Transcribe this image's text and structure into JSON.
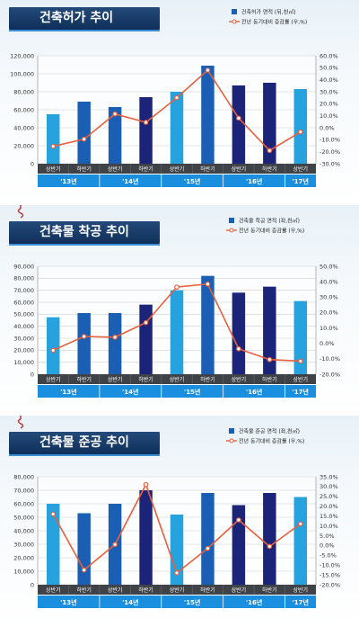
{
  "chart_data": [
    {
      "type": "bar",
      "title": "건축허가 추이",
      "categories": [
        "상반기",
        "하반기",
        "상반기",
        "하반기",
        "상반기",
        "하반기",
        "상반기",
        "하반기",
        "상반기"
      ],
      "year_groups": [
        {
          "label": "'13년",
          "span": [
            0,
            1
          ]
        },
        {
          "label": "'14년",
          "span": [
            2,
            3
          ]
        },
        {
          "label": "'15년",
          "span": [
            4,
            5
          ]
        },
        {
          "label": "'16년",
          "span": [
            6,
            7
          ]
        },
        {
          "label": "'17년",
          "span": [
            8,
            8
          ]
        }
      ],
      "series": [
        {
          "name": "건축허가 면적 (뒤,천㎡)",
          "type": "bar",
          "values": [
            55000,
            69000,
            63000,
            74000,
            80000,
            109000,
            87000,
            90000,
            83000
          ]
        },
        {
          "name": "전년 동기대비 증감률 (우,%)",
          "type": "line",
          "values": [
            -15.5,
            -9.5,
            11.5,
            4.5,
            25.0,
            48.0,
            8.0,
            -19.0,
            -3.5
          ]
        }
      ],
      "y_left": {
        "ticks": [
          "0",
          "20,000",
          "40,000",
          "60,000",
          "80,000",
          "100,000",
          "120,000"
        ],
        "min": 0,
        "max": 120000
      },
      "y_right": {
        "ticks": [
          "-30.0%",
          "-20.0%",
          "-10.0%",
          "0.0%",
          "10.0%",
          "20.0%",
          "30.0%",
          "40.0%",
          "50.0%",
          "60.0%"
        ],
        "min": -30,
        "max": 60
      }
    },
    {
      "type": "bar",
      "title": "건축물 착공 추이",
      "categories": [
        "상반기",
        "하반기",
        "상반기",
        "하반기",
        "상반기",
        "하반기",
        "상반기",
        "하반기",
        "상반기"
      ],
      "year_groups": [
        {
          "label": "'13년",
          "span": [
            0,
            1
          ]
        },
        {
          "label": "'14년",
          "span": [
            2,
            3
          ]
        },
        {
          "label": "'15년",
          "span": [
            4,
            5
          ]
        },
        {
          "label": "'16년",
          "span": [
            6,
            7
          ]
        },
        {
          "label": "'17년",
          "span": [
            8,
            8
          ]
        }
      ],
      "series": [
        {
          "name": "건축물 착공 면적 (좌,천㎡)",
          "type": "bar",
          "values": [
            47500,
            51000,
            51000,
            58000,
            70000,
            82000,
            68000,
            73000,
            61000
          ]
        },
        {
          "name": "전년 동기대비 증감률 (우,%)",
          "type": "line",
          "values": [
            -4.5,
            4.5,
            4.0,
            13.5,
            36.5,
            38.5,
            -3.5,
            -10.5,
            -11.5
          ]
        }
      ],
      "y_left": {
        "ticks": [
          "0",
          "10,000",
          "20,000",
          "30,000",
          "40,000",
          "50,000",
          "60,000",
          "70,000",
          "80,000",
          "90,000"
        ],
        "min": 0,
        "max": 90000
      },
      "y_right": {
        "ticks": [
          "-20.0%",
          "-10.0%",
          "0.0%",
          "10.0%",
          "20.0%",
          "30.0%",
          "40.0%",
          "50.0%"
        ],
        "min": -20,
        "max": 50
      }
    },
    {
      "type": "bar",
      "title": "건축물 준공 추이",
      "categories": [
        "상반기",
        "하반기",
        "상반기",
        "하반기",
        "상반기",
        "하반기",
        "상반기",
        "하반기",
        "상반기"
      ],
      "year_groups": [
        {
          "label": "'13년",
          "span": [
            0,
            1
          ]
        },
        {
          "label": "'14년",
          "span": [
            2,
            3
          ]
        },
        {
          "label": "'15년",
          "span": [
            4,
            5
          ]
        },
        {
          "label": "'16년",
          "span": [
            6,
            7
          ]
        },
        {
          "label": "'17년",
          "span": [
            8,
            8
          ]
        }
      ],
      "series": [
        {
          "name": "건축물 준공 면적 (좌,천㎡)",
          "type": "bar",
          "values": [
            60000,
            53000,
            60000,
            70000,
            52000,
            68000,
            59000,
            68000,
            65000
          ]
        },
        {
          "name": "전년 동기대비 증감률 (우,%)",
          "type": "line",
          "values": [
            16.0,
            -12.5,
            0.5,
            31.0,
            -14.0,
            -1.5,
            13.0,
            -0.5,
            11.0
          ]
        }
      ],
      "y_left": {
        "ticks": [
          "0",
          "10,000",
          "20,000",
          "30,000",
          "40,000",
          "50,000",
          "60,000",
          "70,000",
          "80,000"
        ],
        "min": 0,
        "max": 80000
      },
      "y_right": {
        "ticks": [
          "-20.0%",
          "-15.0%",
          "-10.0%",
          "-5.0%",
          "0.0%",
          "5.0%",
          "10.0%",
          "15.0%",
          "20.0%",
          "25.0%",
          "30.0%",
          "35.0%"
        ],
        "min": -20,
        "max": 35
      }
    }
  ],
  "colors": {
    "bar_first_half": "#26a3de",
    "bar_second_half": "#1a5fb4",
    "bar_dark": "#1c2479",
    "line": "#e8603c",
    "line_marker_fill": "#ffffff",
    "category_band": "#3f4347",
    "year_band": "#1a8fe0",
    "grid": "#d0d0d0",
    "title_bar": "#163b6a"
  },
  "icons": [
    "hook-icon",
    "basket-icon",
    "legend-bar-icon",
    "legend-line-icon"
  ]
}
